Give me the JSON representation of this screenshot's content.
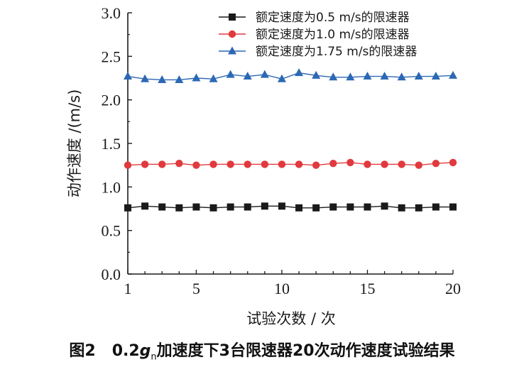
{
  "chart_data": {
    "type": "line",
    "x": [
      1,
      2,
      3,
      4,
      5,
      6,
      7,
      8,
      9,
      10,
      11,
      12,
      13,
      14,
      15,
      16,
      17,
      18,
      19,
      20
    ],
    "series": [
      {
        "name": "额定速度为0.5 m/s的限速器",
        "color": "#1a1a1a",
        "marker": "square",
        "values": [
          0.76,
          0.78,
          0.77,
          0.76,
          0.77,
          0.76,
          0.77,
          0.77,
          0.78,
          0.78,
          0.76,
          0.76,
          0.77,
          0.77,
          0.77,
          0.78,
          0.76,
          0.76,
          0.77,
          0.77
        ]
      },
      {
        "name": "额定速度为1.0 m/s的限速器",
        "color": "#e03a3e",
        "marker": "circle",
        "values": [
          1.25,
          1.26,
          1.26,
          1.27,
          1.25,
          1.26,
          1.26,
          1.26,
          1.26,
          1.26,
          1.26,
          1.25,
          1.27,
          1.28,
          1.26,
          1.26,
          1.26,
          1.25,
          1.27,
          1.28
        ]
      },
      {
        "name": "额定速度为1.75 m/s的限速器",
        "color": "#2c68b4",
        "marker": "triangle",
        "values": [
          2.27,
          2.24,
          2.23,
          2.23,
          2.25,
          2.24,
          2.29,
          2.27,
          2.29,
          2.24,
          2.31,
          2.28,
          2.26,
          2.26,
          2.27,
          2.27,
          2.26,
          2.27,
          2.27,
          2.28
        ]
      }
    ],
    "xlabel": "试验次数 / 次",
    "ylabel": "动作速度 /(m/s)",
    "xlim": [
      1,
      20
    ],
    "ylim": [
      0,
      3.0
    ],
    "xticks": [
      1,
      5,
      10,
      15,
      20
    ],
    "yticks": [
      "0.0",
      "0.5",
      "1.0",
      "1.5",
      "2.0",
      "2.5",
      "3.0"
    ],
    "legend_position": "top-right",
    "grid": false
  },
  "caption": {
    "fig_label": "图2",
    "value": "0.2",
    "g": "g",
    "g_sub": "n",
    "rest": "加速度下3台限速器20次动作速度试验结果"
  }
}
